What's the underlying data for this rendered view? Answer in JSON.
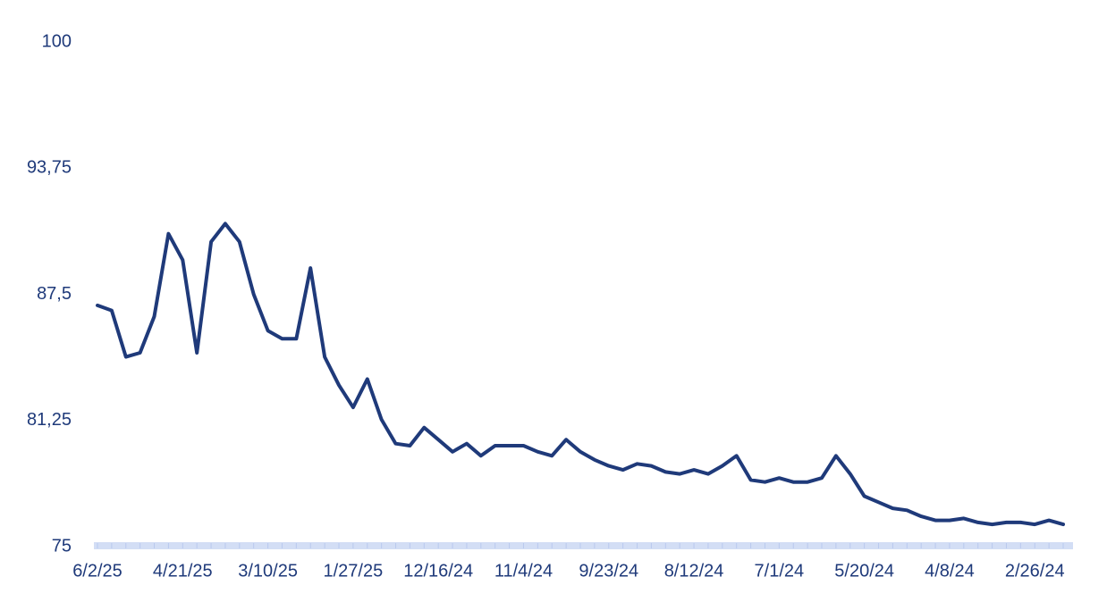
{
  "chart_data": {
    "type": "line",
    "categories": [
      "6/2/25",
      null,
      null,
      null,
      null,
      null,
      "4/21/25",
      null,
      null,
      null,
      null,
      null,
      "3/10/25",
      null,
      null,
      null,
      null,
      null,
      "1/27/25",
      null,
      null,
      null,
      null,
      null,
      "12/16/24",
      null,
      null,
      null,
      null,
      null,
      "11/4/24",
      null,
      null,
      null,
      null,
      null,
      "9/23/24",
      null,
      null,
      null,
      null,
      null,
      "8/12/24",
      null,
      null,
      null,
      null,
      null,
      "7/1/24",
      null,
      null,
      null,
      null,
      null,
      "5/20/24",
      null,
      null,
      null,
      null,
      null,
      "4/8/24",
      null,
      null,
      null,
      null,
      null,
      "2/26/24",
      null,
      null
    ],
    "values": [
      86.95,
      86.7,
      84.4,
      84.6,
      86.4,
      90.5,
      89.2,
      84.6,
      90.1,
      91.0,
      90.1,
      87.5,
      85.7,
      85.3,
      85.3,
      88.8,
      84.4,
      83.0,
      81.9,
      83.3,
      81.3,
      80.1,
      80.0,
      80.9,
      80.3,
      79.7,
      80.1,
      79.5,
      80.0,
      80.0,
      80.0,
      79.7,
      79.5,
      80.3,
      79.7,
      79.3,
      79.0,
      78.8,
      79.1,
      79.0,
      78.7,
      78.6,
      78.8,
      78.6,
      79.0,
      79.5,
      78.3,
      78.2,
      78.4,
      78.2,
      78.2,
      78.4,
      79.5,
      78.6,
      77.5,
      77.2,
      76.9,
      76.8,
      76.5,
      76.3,
      76.3,
      76.4,
      76.2,
      76.1,
      76.2,
      76.2,
      76.1,
      76.3,
      76.1
    ],
    "color": "#1f3a7a",
    "ylim": [
      75,
      100
    ],
    "yticks": [
      75,
      {
        "value": 81.25,
        "label": "81,25"
      },
      {
        "value": 87.5,
        "label": "87,5"
      },
      {
        "value": 93.75,
        "label": "93,75"
      },
      100
    ],
    "grid": false
  }
}
